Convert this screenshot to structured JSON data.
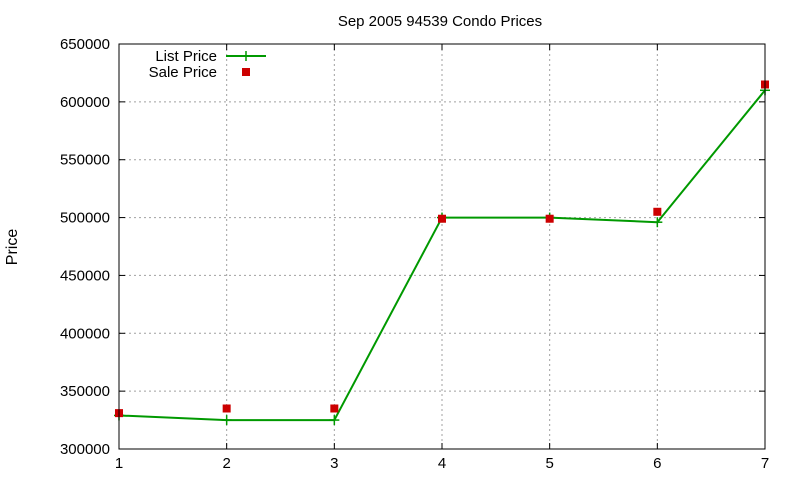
{
  "chart_data": {
    "type": "line",
    "title": "Sep 2005 94539 Condo Prices",
    "xlabel": "",
    "ylabel": "Price",
    "x": [
      1,
      2,
      3,
      4,
      5,
      6,
      7
    ],
    "xlim": [
      1,
      7
    ],
    "ylim": [
      300000,
      650000
    ],
    "xticks": [
      "1",
      "2",
      "3",
      "4",
      "5",
      "6",
      "7"
    ],
    "yticks": [
      "300000",
      "350000",
      "400000",
      "450000",
      "500000",
      "550000",
      "600000",
      "650000"
    ],
    "grid": true,
    "legend_position": "top-left",
    "series": [
      {
        "name": "List Price",
        "style": "lines-with-plus-points",
        "color": "#009900",
        "values": [
          329000,
          325000,
          325000,
          500000,
          500000,
          496000,
          610000
        ]
      },
      {
        "name": "Sale Price",
        "style": "square-points",
        "color": "#cc0000",
        "values": [
          331000,
          335000,
          335000,
          499000,
          499000,
          505000,
          615000
        ]
      }
    ]
  }
}
